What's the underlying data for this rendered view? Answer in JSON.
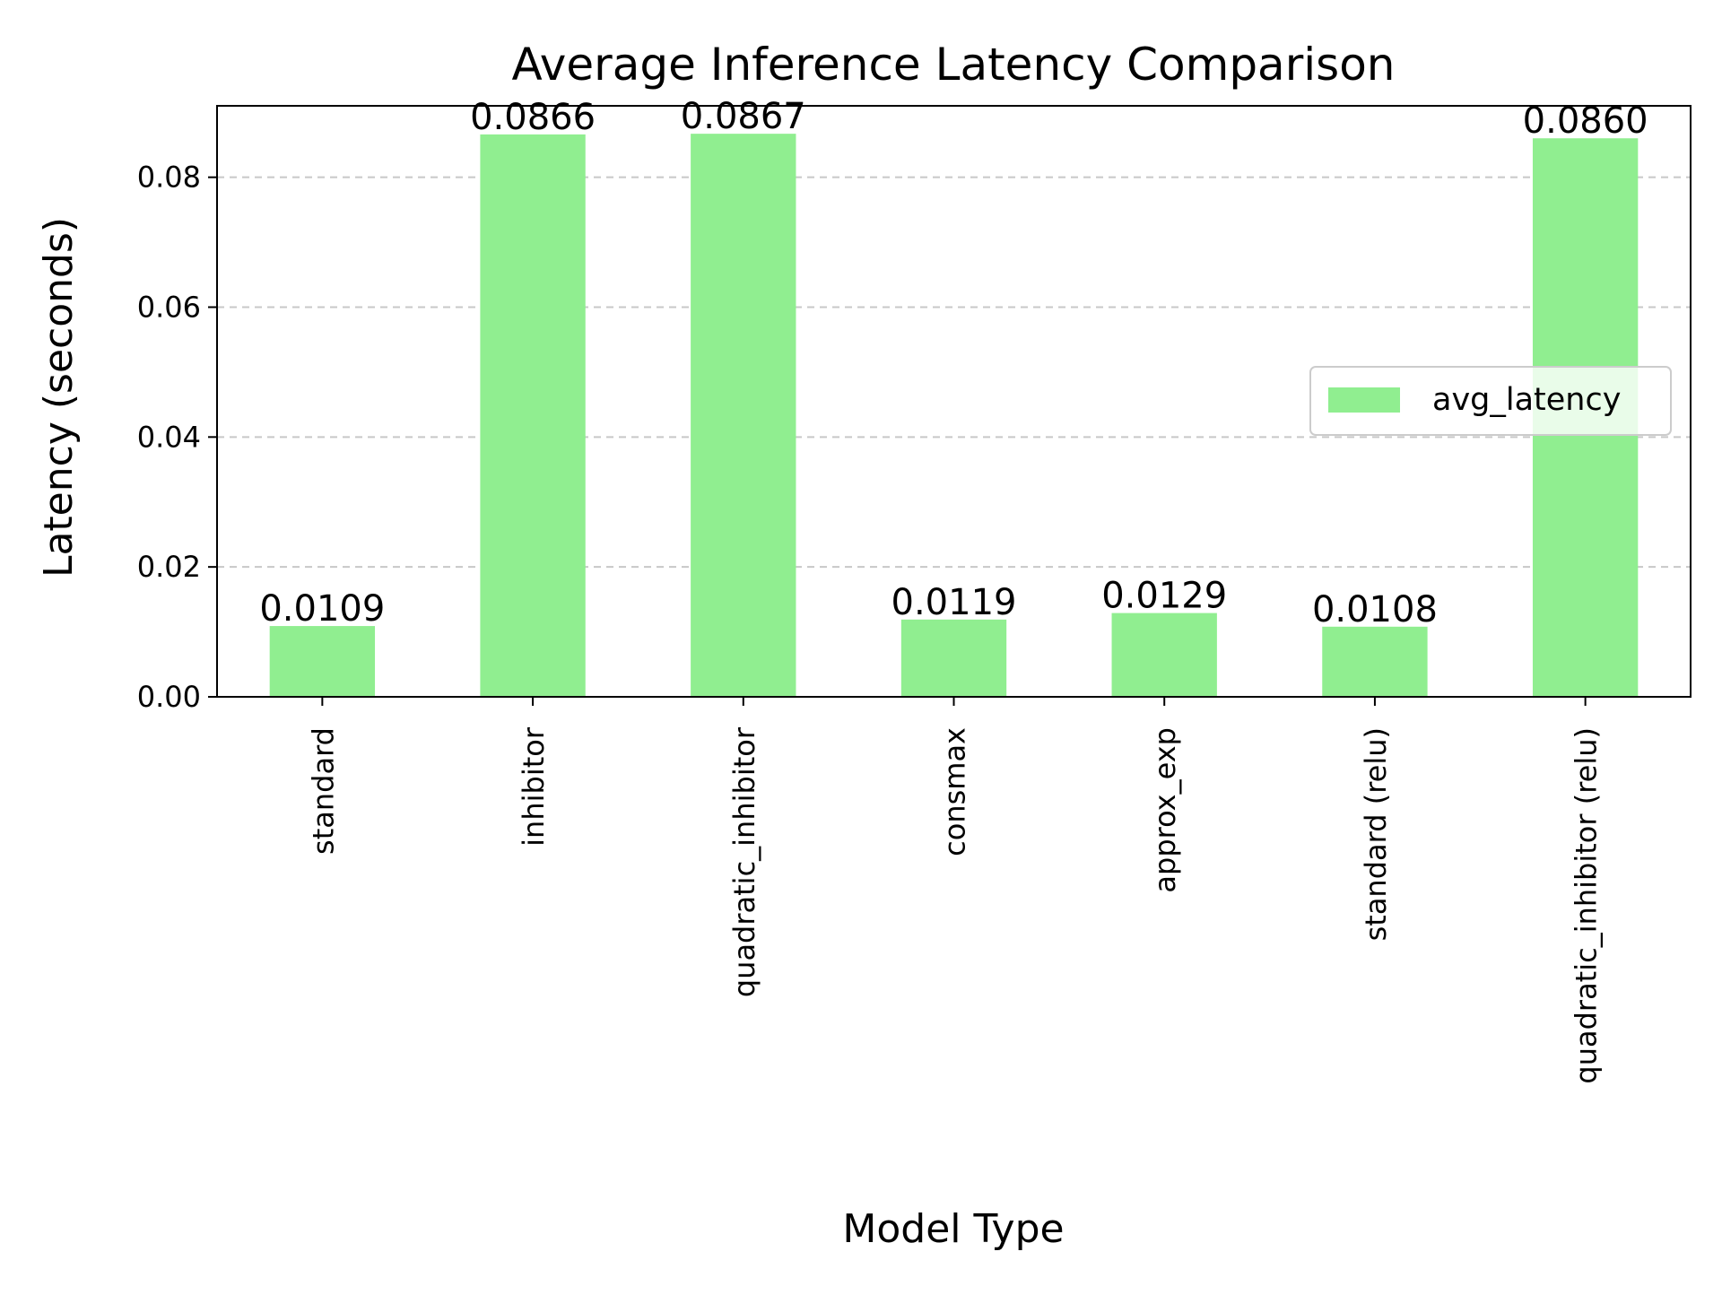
{
  "chart_data": {
    "type": "bar",
    "title": "Average Inference Latency Comparison",
    "xlabel": "Model Type",
    "ylabel": "Latency (seconds)",
    "categories": [
      "standard",
      "inhibitor",
      "quadratic_inhibitor",
      "consmax",
      "approx_exp",
      "standard (relu)",
      "quadratic_inhibitor (relu)"
    ],
    "series": [
      {
        "name": "avg_latency",
        "values": [
          0.0109,
          0.0866,
          0.0867,
          0.0119,
          0.0129,
          0.0108,
          0.086
        ],
        "labels": [
          "0.0109",
          "0.0866",
          "0.0867",
          "0.0119",
          "0.0129",
          "0.0108",
          "0.0860"
        ],
        "color": "#90ee90"
      }
    ],
    "ylim": [
      0,
      0.091
    ],
    "yticks": [
      0.0,
      0.02,
      0.04,
      0.06,
      0.08
    ],
    "ytick_labels": [
      "0.00",
      "0.02",
      "0.04",
      "0.06",
      "0.08"
    ],
    "grid": "y-dashed",
    "legend": "center-right",
    "colors": {
      "bar": "#90ee90",
      "grid": "#c8c8c8",
      "axis": "#000000"
    }
  }
}
